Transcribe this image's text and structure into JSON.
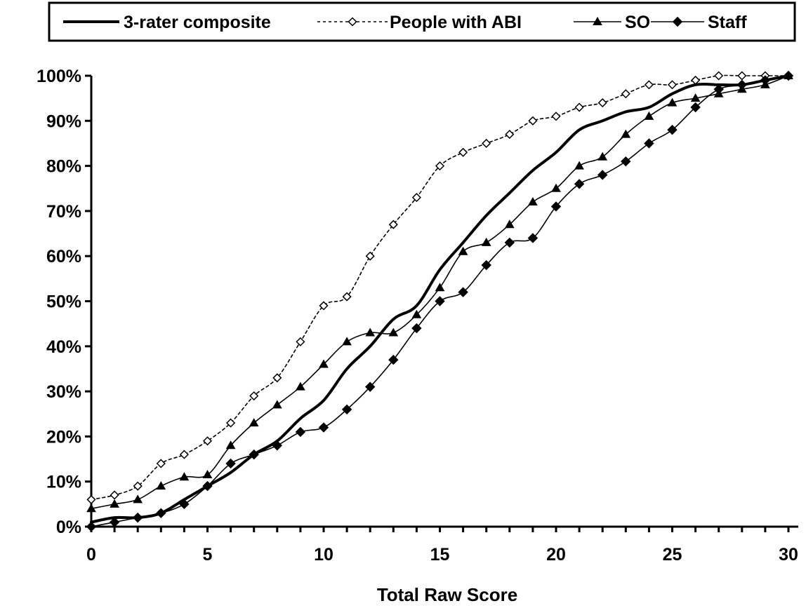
{
  "chart_data": {
    "type": "line",
    "xlabel": "Total Raw Score",
    "ylabel": "",
    "xlim": [
      0,
      30
    ],
    "ylim": [
      0,
      100
    ],
    "x_ticks": [
      "0",
      "5",
      "10",
      "15",
      "20",
      "25",
      "30"
    ],
    "y_ticks": [
      "0%",
      "10%",
      "20%",
      "30%",
      "40%",
      "50%",
      "60%",
      "70%",
      "80%",
      "90%",
      "100%"
    ],
    "legend_position": "top",
    "grid": false,
    "x": [
      0,
      1,
      2,
      3,
      4,
      5,
      6,
      7,
      8,
      9,
      10,
      11,
      12,
      13,
      14,
      15,
      16,
      17,
      18,
      19,
      20,
      21,
      22,
      23,
      24,
      25,
      26,
      27,
      28,
      29,
      30
    ],
    "series": [
      {
        "name": "3-rater composite",
        "style": "thick-solid",
        "marker": "none",
        "values": [
          1,
          2,
          2,
          3,
          6,
          9,
          12,
          16,
          19,
          24,
          28,
          35,
          40,
          46,
          49,
          57,
          63,
          69,
          74,
          79,
          83,
          88,
          90,
          92,
          93,
          96,
          98,
          98,
          98,
          99,
          100
        ]
      },
      {
        "name": "People with ABI",
        "style": "dotted",
        "marker": "open-diamond",
        "values": [
          6,
          7,
          9,
          14,
          16,
          19,
          23,
          29,
          33,
          41,
          49,
          51,
          60,
          67,
          73,
          80,
          83,
          85,
          87,
          90,
          91,
          93,
          94,
          96,
          98,
          98,
          99,
          100,
          100,
          100,
          100
        ]
      },
      {
        "name": "SO",
        "style": "thin-solid",
        "marker": "filled-triangle",
        "values": [
          4,
          5,
          6,
          9,
          11,
          11.5,
          18,
          23,
          27,
          31,
          36,
          41,
          43,
          43,
          47,
          53,
          61,
          63,
          67,
          72,
          75,
          80,
          82,
          87,
          91,
          94,
          95,
          96,
          97,
          98,
          100
        ]
      },
      {
        "name": "Staff",
        "style": "thin-solid",
        "marker": "filled-diamond",
        "values": [
          0,
          1,
          2,
          3,
          5,
          9,
          14,
          16,
          18,
          21,
          22,
          26,
          31,
          37,
          44,
          50,
          52,
          58,
          63,
          64,
          71,
          76,
          78,
          81,
          85,
          88,
          93,
          97,
          98,
          99,
          100
        ]
      }
    ]
  }
}
